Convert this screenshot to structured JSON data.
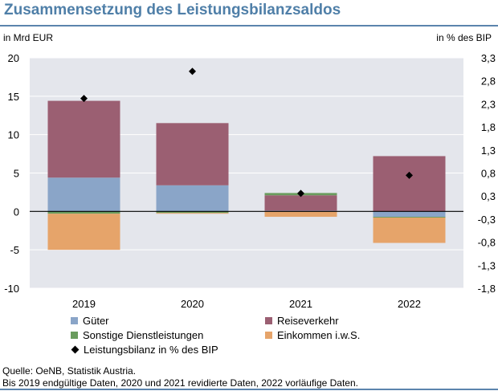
{
  "chart_data": {
    "type": "bar",
    "title": "Zusammensetzung des Leistungsbilanzsaldos",
    "ylabel_left": "in Mrd EUR",
    "ylabel_right": "in % des BIP",
    "categories": [
      "2019",
      "2020",
      "2021",
      "2022"
    ],
    "ylim_left": [
      -10,
      20
    ],
    "yticks_left": [
      "20",
      "15",
      "10",
      "5",
      "0",
      "-5",
      "-10"
    ],
    "ylim_right": [
      -1.8,
      3.3
    ],
    "yticks_right": [
      "3,3",
      "2,8",
      "2,3",
      "1,8",
      "1,3",
      "0,8",
      "0,3",
      "-0,3",
      "-0,8",
      "-1,3",
      "-1,8"
    ],
    "grid": true,
    "stacked": true,
    "series": [
      {
        "name": "Güter",
        "color": "#8aa5c8",
        "values": [
          4.4,
          3.4,
          0.1,
          -0.7
        ]
      },
      {
        "name": "Reiseverkehr",
        "color": "#9b5f72",
        "values": [
          10.0,
          8.1,
          2.0,
          7.2
        ]
      },
      {
        "name": "Sonstige Dienstleistungen",
        "color": "#6a9c5e",
        "values": [
          -0.3,
          -0.2,
          0.3,
          -0.1
        ]
      },
      {
        "name": "Einkommen i.w.S.",
        "color": "#e6a46a",
        "values": [
          -4.7,
          -0.1,
          -0.7,
          -3.3
        ]
      }
    ],
    "line_series": {
      "name": "Leistungsbilanz in % des BIP",
      "color": "#000000",
      "axis": "right",
      "values": [
        2.4,
        3.0,
        0.3,
        0.7
      ]
    }
  },
  "legend": {
    "gueter": "Güter",
    "reiseverkehr": "Reiseverkehr",
    "sonstige": "Sonstige Dienstleistungen",
    "einkommen": "Einkommen i.w.S.",
    "leistungsbilanz": "Leistungsbilanz in % des BIP"
  },
  "footnote": {
    "source": "Quelle: OeNB, Statistik Austria.",
    "note": "Bis 2019 endgültige Daten, 2020 und 2021 revidierte Daten, 2022 vorläufige Daten."
  }
}
